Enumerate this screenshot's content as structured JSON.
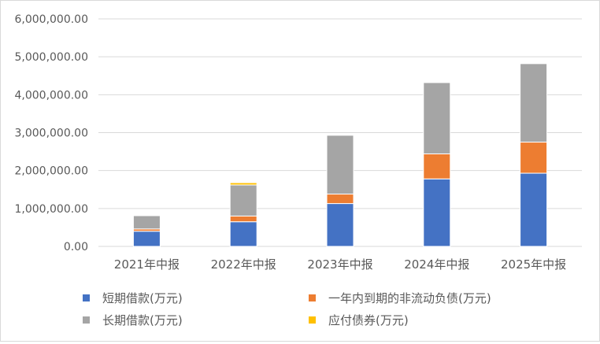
{
  "chart_data": {
    "type": "bar",
    "stacked": true,
    "title": "",
    "xlabel": "",
    "ylabel": "",
    "categories": [
      "2021年中报",
      "2022年中报",
      "2023年中报",
      "2024年中报",
      "2025年中报"
    ],
    "ylim": [
      0,
      6000000
    ],
    "yticks": [
      "0.00",
      "1,000,000.00",
      "2,000,000.00",
      "3,000,000.00",
      "4,000,000.00",
      "5,000,000.00",
      "6,000,000.00"
    ],
    "grid": true,
    "legend_position": "bottom",
    "series": [
      {
        "name": "短期借款(万元)",
        "color": "#4472c4",
        "values": [
          400000,
          650000,
          1130000,
          1780000,
          1930000
        ]
      },
      {
        "name": "一年内到期的非流动负债(万元)",
        "color": "#ed7d31",
        "values": [
          60000,
          150000,
          250000,
          660000,
          820000
        ]
      },
      {
        "name": "长期借款(万元)",
        "color": "#a5a5a5",
        "values": [
          350000,
          820000,
          1550000,
          1880000,
          2070000
        ]
      },
      {
        "name": "应付债券(万元)",
        "color": "#ffc000",
        "values": [
          20000,
          60000,
          0,
          0,
          0
        ]
      }
    ]
  }
}
